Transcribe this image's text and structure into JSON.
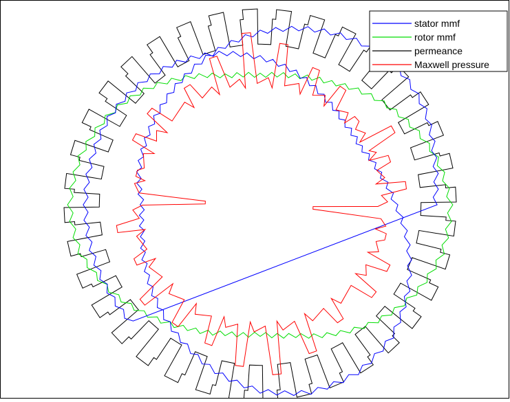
{
  "chart_data": {
    "type": "line",
    "projection": "polar",
    "title": "",
    "xlabel": "",
    "ylabel": "",
    "grid": false,
    "axes_visible": false,
    "legend": {
      "placement": "top-right",
      "entries": [
        {
          "label": "stator mmf",
          "color": "#0000ff"
        },
        {
          "label": "rotor mmf",
          "color": "#00dd00"
        },
        {
          "label": "permeance",
          "color": "#000000"
        },
        {
          "label": "Maxwell pressure",
          "color": "#ff0000"
        }
      ]
    },
    "series": [
      {
        "name": "stator mmf",
        "color": "#0000ff",
        "angle_start_deg": 0,
        "angle_step_deg": 15,
        "radius": [
          0.89,
          0.92,
          0.97,
          0.99,
          0.97,
          0.93,
          0.88,
          0.82,
          0.76,
          0.71,
          0.67,
          0.64,
          0.6,
          0.62,
          0.67,
          0.73,
          0.8,
          0.88,
          0.95,
          0.99,
          0.99,
          0.95,
          0.87,
          0.78,
          0.69,
          0.63,
          0.59,
          0.6,
          0.64,
          0.7,
          0.75,
          0.8,
          0.84,
          0.87,
          0.89,
          0.89,
          0.89,
          0.89,
          0.89,
          0.89
        ]
      },
      {
        "name": "rotor mmf",
        "color": "#00dd00",
        "angle_start_deg": 0,
        "angle_step_deg": 15,
        "radius": [
          0.97,
          0.93,
          0.86,
          0.79,
          0.72,
          0.68,
          0.66,
          0.68,
          0.75,
          0.83,
          0.9,
          0.95,
          0.97,
          0.95,
          0.88,
          0.8,
          0.73,
          0.68,
          0.66,
          0.69,
          0.76,
          0.84,
          0.91,
          0.96,
          0.97
        ]
      },
      {
        "name": "permeance",
        "color": "#000000",
        "teeth": 36,
        "radius_tooth": 1.0,
        "radius_slot": 0.82
      },
      {
        "name": "Maxwell pressure",
        "color": "#ff0000",
        "base_radius": 0.62,
        "spikes": [
          {
            "angle_deg": 8,
            "radius": 0.75
          },
          {
            "angle_deg": 20,
            "radius": 0.7
          },
          {
            "angle_deg": 30,
            "radius": 0.78
          },
          {
            "angle_deg": 42,
            "radius": 0.66
          },
          {
            "angle_deg": 55,
            "radius": 0.73
          },
          {
            "angle_deg": 68,
            "radius": 0.75
          },
          {
            "angle_deg": 82,
            "radius": 0.83
          },
          {
            "angle_deg": 95,
            "radius": 0.88
          },
          {
            "angle_deg": 108,
            "radius": 0.79
          },
          {
            "angle_deg": 122,
            "radius": 0.71
          },
          {
            "angle_deg": 140,
            "radius": 0.74
          },
          {
            "angle_deg": 152,
            "radius": 0.73
          },
          {
            "angle_deg": 166,
            "radius": 0.65
          },
          {
            "angle_deg": 178,
            "radius": 0.28
          },
          {
            "angle_deg": 190,
            "radius": 0.74
          },
          {
            "angle_deg": 205,
            "radius": 0.7
          },
          {
            "angle_deg": 220,
            "radius": 0.78
          },
          {
            "angle_deg": 235,
            "radius": 0.75
          },
          {
            "angle_deg": 250,
            "radius": 0.76
          },
          {
            "angle_deg": 263,
            "radius": 0.83
          },
          {
            "angle_deg": 276,
            "radius": 0.87
          },
          {
            "angle_deg": 290,
            "radius": 0.8
          },
          {
            "angle_deg": 305,
            "radius": 0.72
          },
          {
            "angle_deg": 322,
            "radius": 0.74
          },
          {
            "angle_deg": 334,
            "radius": 0.73
          },
          {
            "angle_deg": 346,
            "radius": 0.66
          },
          {
            "angle_deg": 357,
            "radius": 0.27
          }
        ]
      }
    ]
  }
}
